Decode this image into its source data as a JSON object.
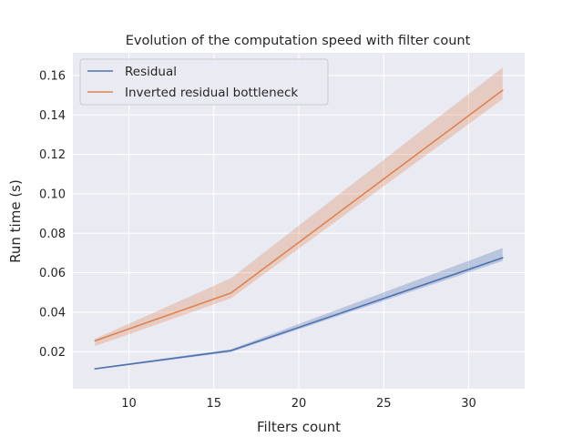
{
  "chart_data": {
    "type": "line",
    "title": "Evolution of the computation speed with filter count",
    "xlabel": "Filters count",
    "ylabel": "Run time (s)",
    "xlim": [
      6.7,
      33.3
    ],
    "ylim": [
      0.0012,
      0.1715
    ],
    "xticks": [
      10,
      15,
      20,
      25,
      30
    ],
    "yticks": [
      0.02,
      0.04,
      0.06,
      0.08,
      0.1,
      0.12,
      0.14,
      0.16
    ],
    "xtick_labels": [
      "10",
      "15",
      "20",
      "25",
      "30"
    ],
    "ytick_labels": [
      "0.02",
      "0.04",
      "0.06",
      "0.08",
      "0.10",
      "0.12",
      "0.14",
      "0.16"
    ],
    "grid": true,
    "legend_position": "top-left",
    "x": [
      8,
      16,
      32
    ],
    "series": [
      {
        "name": "Residual",
        "color": "#4c72b0",
        "values": [
          0.0113,
          0.0205,
          0.0676
        ],
        "ci_lower": [
          0.011,
          0.0198,
          0.066
        ],
        "ci_upper": [
          0.0117,
          0.0212,
          0.0725
        ]
      },
      {
        "name": "Inverted residual bottleneck",
        "color": "#dd8452",
        "values": [
          0.0255,
          0.0497,
          0.1525
        ],
        "ci_lower": [
          0.0228,
          0.047,
          0.148
        ],
        "ci_upper": [
          0.0265,
          0.0572,
          0.164
        ]
      }
    ]
  }
}
